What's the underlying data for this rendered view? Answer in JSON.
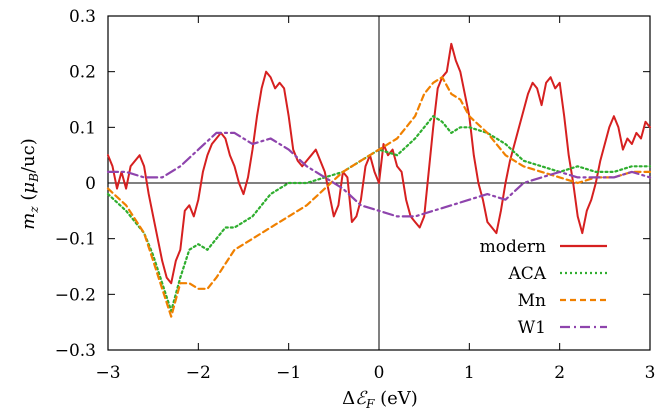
{
  "chart_data": {
    "type": "line",
    "title": "",
    "xlabel": "ΔℰF (eV)",
    "ylabel": "mz (μB/uc)",
    "xlim": [
      -3,
      3
    ],
    "ylim": [
      -0.3,
      0.3
    ],
    "xticks": [
      -3,
      -2,
      -1,
      0,
      1,
      2,
      3
    ],
    "yticks": [
      -0.3,
      -0.2,
      -0.1,
      0,
      0.1,
      0.2,
      0.3
    ],
    "xtick_labels": [
      "−3",
      "−2",
      "−1",
      "0",
      "1",
      "2",
      "3"
    ],
    "ytick_labels": [
      "−0.3",
      "−0.2",
      "−0.1",
      "0",
      "0.1",
      "0.2",
      "0.3"
    ],
    "grid": false,
    "zero_lines": true,
    "legend_position": "lower-right",
    "series": [
      {
        "name": "modern",
        "color": "#d62020",
        "dash": "solid",
        "x": [
          -3.0,
          -2.95,
          -2.9,
          -2.85,
          -2.8,
          -2.75,
          -2.7,
          -2.65,
          -2.6,
          -2.55,
          -2.5,
          -2.45,
          -2.4,
          -2.35,
          -2.3,
          -2.25,
          -2.2,
          -2.15,
          -2.1,
          -2.05,
          -2.0,
          -1.95,
          -1.9,
          -1.85,
          -1.8,
          -1.75,
          -1.7,
          -1.65,
          -1.6,
          -1.55,
          -1.5,
          -1.45,
          -1.4,
          -1.35,
          -1.3,
          -1.25,
          -1.2,
          -1.15,
          -1.1,
          -1.05,
          -1.0,
          -0.95,
          -0.9,
          -0.85,
          -0.8,
          -0.75,
          -0.7,
          -0.65,
          -0.6,
          -0.55,
          -0.5,
          -0.45,
          -0.4,
          -0.35,
          -0.3,
          -0.25,
          -0.2,
          -0.15,
          -0.1,
          -0.05,
          0.0,
          0.05,
          0.1,
          0.15,
          0.2,
          0.25,
          0.3,
          0.35,
          0.4,
          0.45,
          0.5,
          0.55,
          0.6,
          0.65,
          0.7,
          0.75,
          0.8,
          0.85,
          0.9,
          0.95,
          1.0,
          1.05,
          1.1,
          1.15,
          1.2,
          1.25,
          1.3,
          1.35,
          1.4,
          1.45,
          1.5,
          1.55,
          1.6,
          1.65,
          1.7,
          1.75,
          1.8,
          1.85,
          1.9,
          1.95,
          2.0,
          2.05,
          2.1,
          2.15,
          2.2,
          2.25,
          2.3,
          2.35,
          2.4,
          2.45,
          2.5,
          2.55,
          2.6,
          2.65,
          2.7,
          2.75,
          2.8,
          2.85,
          2.9,
          2.95,
          3.0
        ],
        "y": [
          0.05,
          0.03,
          -0.01,
          0.02,
          -0.01,
          0.03,
          0.04,
          0.05,
          0.03,
          -0.02,
          -0.06,
          -0.1,
          -0.14,
          -0.17,
          -0.18,
          -0.14,
          -0.12,
          -0.05,
          -0.04,
          -0.06,
          -0.03,
          0.02,
          0.05,
          0.07,
          0.08,
          0.09,
          0.08,
          0.05,
          0.03,
          0.0,
          -0.02,
          0.01,
          0.06,
          0.12,
          0.17,
          0.2,
          0.19,
          0.17,
          0.18,
          0.17,
          0.12,
          0.06,
          0.04,
          0.03,
          0.04,
          0.05,
          0.06,
          0.04,
          0.02,
          -0.02,
          -0.06,
          -0.04,
          0.02,
          0.01,
          -0.07,
          -0.06,
          -0.03,
          0.03,
          0.05,
          0.02,
          0.0,
          0.07,
          0.05,
          0.06,
          0.03,
          0.02,
          -0.03,
          -0.06,
          -0.07,
          -0.08,
          -0.06,
          0.02,
          0.1,
          0.17,
          0.19,
          0.2,
          0.25,
          0.22,
          0.2,
          0.16,
          0.12,
          0.05,
          0.0,
          -0.03,
          -0.07,
          -0.08,
          -0.09,
          -0.05,
          0.0,
          0.04,
          0.07,
          0.1,
          0.13,
          0.16,
          0.18,
          0.17,
          0.14,
          0.18,
          0.19,
          0.17,
          0.18,
          0.12,
          0.05,
          0.0,
          -0.06,
          -0.09,
          -0.05,
          -0.03,
          0.0,
          0.04,
          0.07,
          0.1,
          0.12,
          0.1,
          0.06,
          0.08,
          0.07,
          0.09,
          0.08,
          0.11,
          0.1
        ]
      },
      {
        "name": "ACA",
        "color": "#2fae2f",
        "dash": "dotted",
        "x": [
          -3.0,
          -2.8,
          -2.6,
          -2.5,
          -2.4,
          -2.3,
          -2.2,
          -2.1,
          -2.0,
          -1.9,
          -1.8,
          -1.7,
          -1.6,
          -1.5,
          -1.4,
          -1.2,
          -1.0,
          -0.8,
          -0.6,
          -0.4,
          -0.2,
          0.0,
          0.2,
          0.4,
          0.6,
          0.7,
          0.8,
          0.9,
          1.0,
          1.2,
          1.4,
          1.6,
          1.8,
          2.0,
          2.2,
          2.4,
          2.6,
          2.8,
          3.0
        ],
        "y": [
          -0.02,
          -0.05,
          -0.09,
          -0.13,
          -0.18,
          -0.23,
          -0.17,
          -0.12,
          -0.11,
          -0.12,
          -0.1,
          -0.08,
          -0.08,
          -0.07,
          -0.06,
          -0.02,
          0.0,
          0.0,
          0.01,
          0.02,
          0.04,
          0.06,
          0.05,
          0.08,
          0.12,
          0.11,
          0.09,
          0.1,
          0.1,
          0.09,
          0.07,
          0.04,
          0.03,
          0.02,
          0.03,
          0.02,
          0.02,
          0.03,
          0.03
        ]
      },
      {
        "name": "Mn",
        "color": "#f08000",
        "dash": "dashed",
        "x": [
          -3.0,
          -2.8,
          -2.6,
          -2.5,
          -2.4,
          -2.3,
          -2.2,
          -2.1,
          -2.0,
          -1.9,
          -1.8,
          -1.6,
          -1.4,
          -1.2,
          -1.0,
          -0.8,
          -0.6,
          -0.4,
          -0.2,
          0.0,
          0.2,
          0.4,
          0.5,
          0.6,
          0.7,
          0.8,
          0.9,
          1.0,
          1.2,
          1.4,
          1.6,
          1.8,
          2.0,
          2.2,
          2.4,
          2.6,
          2.8,
          3.0
        ],
        "y": [
          -0.01,
          -0.04,
          -0.09,
          -0.14,
          -0.19,
          -0.24,
          -0.18,
          -0.18,
          -0.19,
          -0.19,
          -0.17,
          -0.12,
          -0.1,
          -0.08,
          -0.06,
          -0.04,
          -0.01,
          0.02,
          0.04,
          0.06,
          0.08,
          0.12,
          0.16,
          0.18,
          0.19,
          0.16,
          0.15,
          0.12,
          0.09,
          0.05,
          0.03,
          0.02,
          0.01,
          0.0,
          0.01,
          0.01,
          0.02,
          0.02
        ]
      },
      {
        "name": "W1",
        "color": "#8e44ad",
        "dash": "dash-dot",
        "x": [
          -3.0,
          -2.8,
          -2.6,
          -2.4,
          -2.2,
          -2.0,
          -1.8,
          -1.6,
          -1.4,
          -1.2,
          -1.0,
          -0.8,
          -0.6,
          -0.4,
          -0.2,
          0.0,
          0.2,
          0.4,
          0.6,
          0.8,
          1.0,
          1.2,
          1.4,
          1.6,
          1.8,
          2.0,
          2.2,
          2.4,
          2.6,
          2.8,
          3.0
        ],
        "y": [
          0.02,
          0.02,
          0.01,
          0.01,
          0.03,
          0.06,
          0.09,
          0.09,
          0.07,
          0.08,
          0.06,
          0.03,
          0.01,
          -0.01,
          -0.04,
          -0.05,
          -0.06,
          -0.06,
          -0.05,
          -0.04,
          -0.03,
          -0.02,
          -0.03,
          0.0,
          0.01,
          0.02,
          0.01,
          0.01,
          0.01,
          0.02,
          0.01
        ]
      }
    ]
  }
}
